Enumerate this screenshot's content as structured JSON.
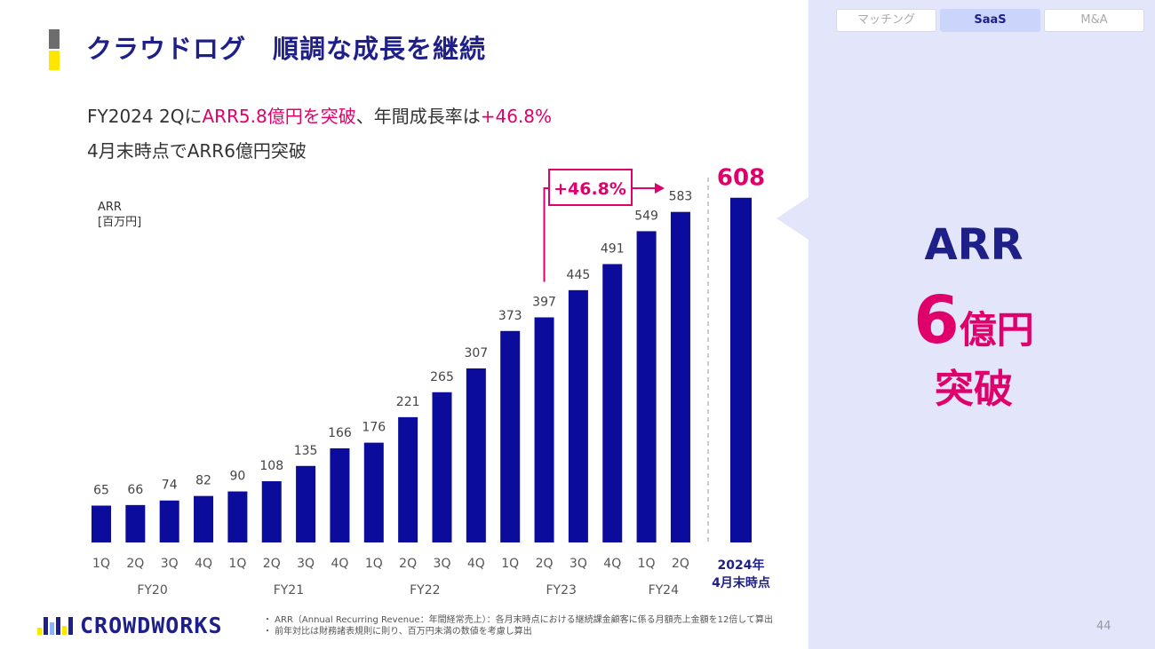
{
  "header": {
    "title": "クラウドログ　順調な成長を継続"
  },
  "headline": {
    "line1_prefix": "FY2024 2Qに",
    "line1_highlight1": "ARR5.8億円を突破",
    "line1_middle": "、年間成長率は",
    "line1_highlight2": "+46.8%",
    "line2": "4月末時点でARR6億円突破"
  },
  "colors": {
    "bar": "#0b0b9c",
    "accent": "#e0006b",
    "navy": "#1f1f8a",
    "side_bg": "#e3e6fb"
  },
  "chart_data": {
    "type": "bar",
    "ylabel_line1": "ARR",
    "ylabel_line2": "[百万円]",
    "categories": [
      "1Q",
      "2Q",
      "3Q",
      "4Q",
      "1Q",
      "2Q",
      "3Q",
      "4Q",
      "1Q",
      "2Q",
      "3Q",
      "4Q",
      "1Q",
      "2Q",
      "3Q",
      "4Q",
      "1Q",
      "2Q"
    ],
    "fiscal_years": [
      "FY20",
      "FY21",
      "FY22",
      "FY23",
      "FY24"
    ],
    "values": [
      65,
      66,
      74,
      82,
      90,
      108,
      135,
      166,
      176,
      221,
      265,
      307,
      373,
      397,
      445,
      491,
      549,
      583
    ],
    "extra_bar": {
      "value": 608,
      "label_line1": "2024年",
      "label_line2": "4月末時点"
    },
    "growth_annotation": "+46.8%",
    "ylim": [
      0,
      650
    ],
    "grid": false
  },
  "side_panel": {
    "tabs": [
      "マッチング",
      "SaaS",
      "M&A"
    ],
    "active_tab": "SaaS",
    "arr_label": "ARR",
    "value_number": "6",
    "value_unit": "億円",
    "value_suffix": "突破"
  },
  "footer": {
    "logo_text": "CROWDWORKS",
    "note1": "・ ARR（Annual Recurring Revenue：年間経常売上）：各月末時点における継続課金顧客に係る月額売上金額を12倍して算出",
    "note2": "・ 前年対比は財務諸表規則に則り、百万円未満の数値を考慮し算出",
    "page_number": "44"
  }
}
